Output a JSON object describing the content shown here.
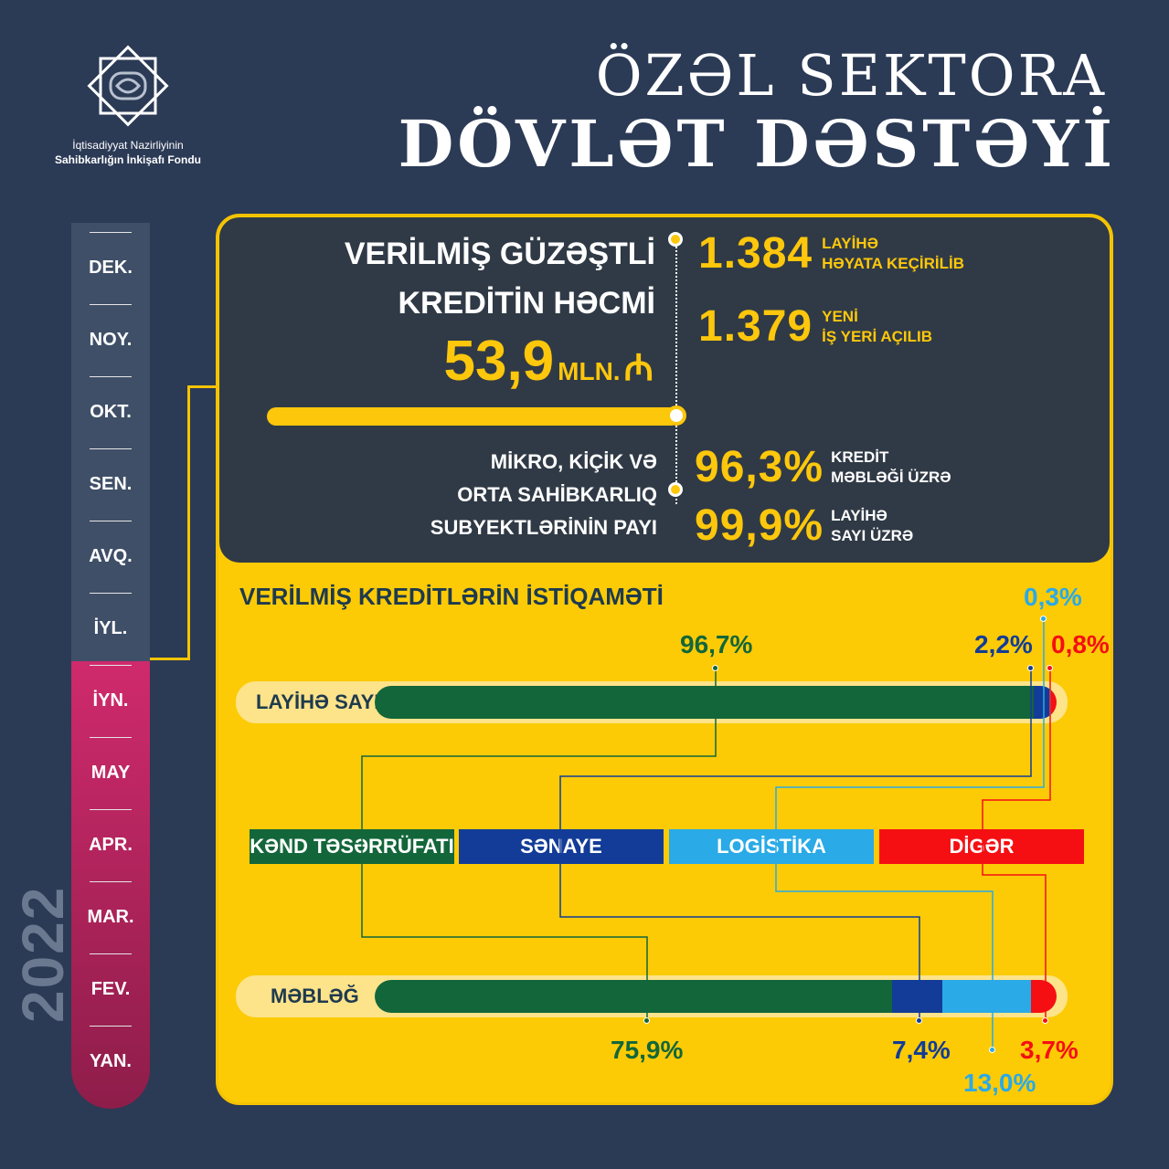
{
  "org": {
    "line1": "İqtisadiyyat Nazirliyinin",
    "line2": "Sahibkarlığın İnkişafı Fondu"
  },
  "title": {
    "line1": "ÖZƏL SEKTORA",
    "line2": "DÖVLƏT DƏSTƏYİ"
  },
  "timeline": {
    "year": "2022",
    "months": [
      "DEK.",
      "NOY.",
      "OKT.",
      "SEN.",
      "AVQ.",
      "İYL.",
      "İYN.",
      "MAY",
      "APR.",
      "MAR.",
      "FEV.",
      "YAN."
    ]
  },
  "loan": {
    "label_line1": "VERİLMİŞ GÜZƏŞTLİ",
    "label_line2": "KREDİTİN HƏCMİ",
    "amount": "53,9",
    "unit": "MLN.",
    "currency_symbol": "₼"
  },
  "stats": [
    {
      "value": "1.384",
      "label_line1": "LAYİHƏ",
      "label_line2": "HƏYATA KEÇİRİLİB"
    },
    {
      "value": "1.379",
      "label_line1": "YENİ",
      "label_line2": "İŞ YERİ AÇILIB"
    }
  ],
  "sme": {
    "label_line1": "MİKRO, KİÇİK VƏ",
    "label_line2": "ORTA SAHİBKARLIQ",
    "label_line3": "SUBYEKTLƏRİNİN PAYI",
    "items": [
      {
        "value": "96,3%",
        "label_line1": "KREDİT",
        "label_line2": "MƏBLƏĞİ ÜZRƏ"
      },
      {
        "value": "99,9%",
        "label_line1": "LAYİHƏ",
        "label_line2": "SAYI ÜZRƏ"
      }
    ]
  },
  "direction": {
    "heading": "VERİLMİŞ KREDİTLƏRİN İSTİQAMƏTİ",
    "categories": [
      {
        "name": "KƏND TƏSƏRRÜFATI",
        "color": "#13663a"
      },
      {
        "name": "SƏNAYE",
        "color": "#123c97"
      },
      {
        "name": "LOGİSTİKA",
        "color": "#2aaae7"
      },
      {
        "name": "DİGƏR",
        "color": "#f50f13"
      }
    ],
    "rows": [
      {
        "label": "LAYİHƏ SAYI",
        "values": [
          96.7,
          2.2,
          0.3,
          0.8
        ],
        "value_labels": [
          "96,7%",
          "2,2%",
          "0,3%",
          "0,8%"
        ]
      },
      {
        "label": "MƏBLƏĞ",
        "values": [
          75.9,
          7.4,
          13.0,
          3.7
        ],
        "value_labels": [
          "75,9%",
          "7,4%",
          "13,0%",
          "3,7%"
        ]
      }
    ]
  }
}
